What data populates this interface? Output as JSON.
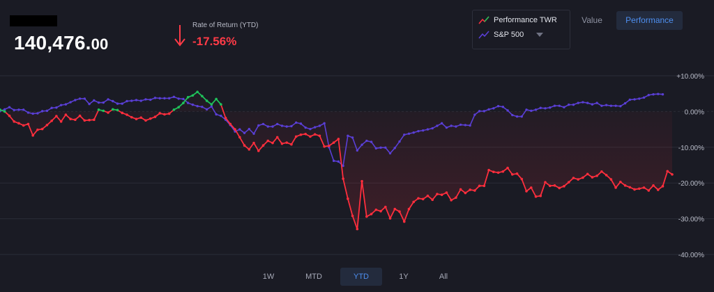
{
  "header": {
    "balance_main": "140,476.",
    "balance_decimals": "00",
    "ror_label": "Rate of Return (YTD)",
    "ror_value": "-17.56%",
    "ror_direction_icon": "arrow-down-icon"
  },
  "legend": {
    "items": [
      {
        "label": "Performance TWR",
        "icon": "trend-line-icon"
      },
      {
        "label": "S&P 500",
        "icon": "trend-line-icon"
      }
    ],
    "dropdown_icon": "caret-down-icon"
  },
  "view_toggle": {
    "value_label": "Value",
    "performance_label": "Performance",
    "active": "Performance"
  },
  "ranges": {
    "items": [
      "1W",
      "MTD",
      "YTD",
      "1Y",
      "All"
    ],
    "active": "YTD"
  },
  "colors": {
    "background": "#1a1b24",
    "portfolio_negative": "#ff2e3d",
    "portfolio_positive": "#1fc25a",
    "benchmark": "#5a3fd6",
    "accent": "#4e8ff0",
    "negative_text": "#ff3b47"
  },
  "chart_data": {
    "type": "line",
    "ylim": [
      -40,
      10
    ],
    "ytick_labels": [
      "+10.00%",
      "0.00%",
      "-10.00%",
      "-20.00%",
      "-30.00%",
      "-40.00%"
    ],
    "ytick_values": [
      10,
      0,
      -10,
      -20,
      -30,
      -40
    ],
    "grid": true,
    "legend_position": "top-right",
    "series": [
      {
        "name": "Performance TWR",
        "values": [
          0.5,
          0.0,
          -1.2,
          -2.8,
          -3.3,
          -3.9,
          -3.5,
          -6.7,
          -5.1,
          -4.9,
          -3.8,
          -2.6,
          -1.3,
          -2.8,
          -0.9,
          -2.1,
          -2.3,
          -1.2,
          -2.5,
          -2.4,
          -2.3,
          0.5,
          0.2,
          -0.3,
          0.6,
          0.4,
          -0.4,
          -0.9,
          -1.6,
          -2.1,
          -1.7,
          -2.5,
          -2.0,
          -1.5,
          -0.5,
          -0.8,
          -0.6,
          0.5,
          1.2,
          2.4,
          4.0,
          4.5,
          5.5,
          4.3,
          3.0,
          2.0,
          3.5,
          2.0,
          -1.8,
          -3.5,
          -5.0,
          -7.2,
          -9.5,
          -10.6,
          -8.8,
          -11.0,
          -9.5,
          -8.2,
          -8.8,
          -7.2,
          -9.0,
          -8.7,
          -9.2,
          -7.0,
          -6.5,
          -6.3,
          -7.0,
          -6.4,
          -6.8,
          -9.8,
          -9.6,
          -8.7,
          -7.7,
          -18.8,
          -24.4,
          -29.2,
          -32.9,
          -19.5,
          -29.4,
          -28.7,
          -27.5,
          -27.9,
          -26.7,
          -29.9,
          -27.3,
          -28.0,
          -30.8,
          -27.3,
          -25.3,
          -24.3,
          -24.5,
          -23.6,
          -24.7,
          -23.1,
          -23.3,
          -22.7,
          -24.8,
          -24.1,
          -21.8,
          -22.8,
          -21.9,
          -22.1,
          -20.8,
          -20.8,
          -16.4,
          -16.9,
          -17.1,
          -16.8,
          -15.8,
          -17.6,
          -17.4,
          -18.9,
          -22.3,
          -21.3,
          -23.8,
          -23.6,
          -19.8,
          -20.8,
          -20.7,
          -21.4,
          -20.9,
          -19.8,
          -18.6,
          -19.0,
          -18.5,
          -17.5,
          -18.4,
          -18.0,
          -16.8,
          -17.8,
          -19.0,
          -21.3,
          -19.7,
          -20.7,
          -21.2,
          -21.8,
          -21.6,
          -21.3,
          -22.1,
          -20.7,
          -21.9,
          -20.9,
          -16.7,
          -17.6
        ]
      },
      {
        "name": "S&P 500",
        "values": [
          0.1,
          0.6,
          1.2,
          0.4,
          0.5,
          0.5,
          -0.3,
          -0.6,
          -0.5,
          0.1,
          0.2,
          1.0,
          1.1,
          1.8,
          2.0,
          2.6,
          3.2,
          3.6,
          3.6,
          2.1,
          3.1,
          2.5,
          2.5,
          3.4,
          2.9,
          2.2,
          2.2,
          2.9,
          3.0,
          3.2,
          3.0,
          3.4,
          3.3,
          3.8,
          3.7,
          3.7,
          3.7,
          4.1,
          3.6,
          3.5,
          2.4,
          1.9,
          1.5,
          1.3,
          0.6,
          1.4,
          -0.8,
          -1.2,
          -2.3,
          -3.8,
          -5.6,
          -5.0,
          -6.0,
          -4.9,
          -6.2,
          -3.9,
          -3.5,
          -4.2,
          -4.2,
          -3.5,
          -4.0,
          -4.2,
          -4.1,
          -3.1,
          -3.4,
          -4.5,
          -4.9,
          -4.4,
          -4.0,
          -3.3,
          -10.0,
          -13.8,
          -14.0,
          -15.2,
          -6.8,
          -7.3,
          -10.9,
          -9.3,
          -8.2,
          -8.5,
          -10.3,
          -10.1,
          -10.1,
          -11.7,
          -10.2,
          -8.4,
          -6.5,
          -6.2,
          -5.9,
          -5.5,
          -5.3,
          -5.0,
          -4.7,
          -4.0,
          -3.3,
          -4.5,
          -4.0,
          -4.2,
          -3.7,
          -3.8,
          -3.9,
          -0.9,
          0.1,
          0.1,
          0.6,
          0.9,
          1.5,
          1.3,
          0.3,
          -1.0,
          -1.4,
          -1.4,
          0.5,
          0.2,
          0.5,
          1.0,
          0.9,
          1.1,
          1.6,
          1.6,
          1.2,
          1.9,
          1.9,
          2.4,
          2.6,
          2.4,
          2.0,
          2.4,
          1.6,
          1.8,
          1.6,
          1.6,
          1.5,
          2.3,
          3.3,
          3.4,
          3.6,
          3.9,
          4.6,
          4.8,
          4.9,
          4.8
        ]
      }
    ]
  }
}
